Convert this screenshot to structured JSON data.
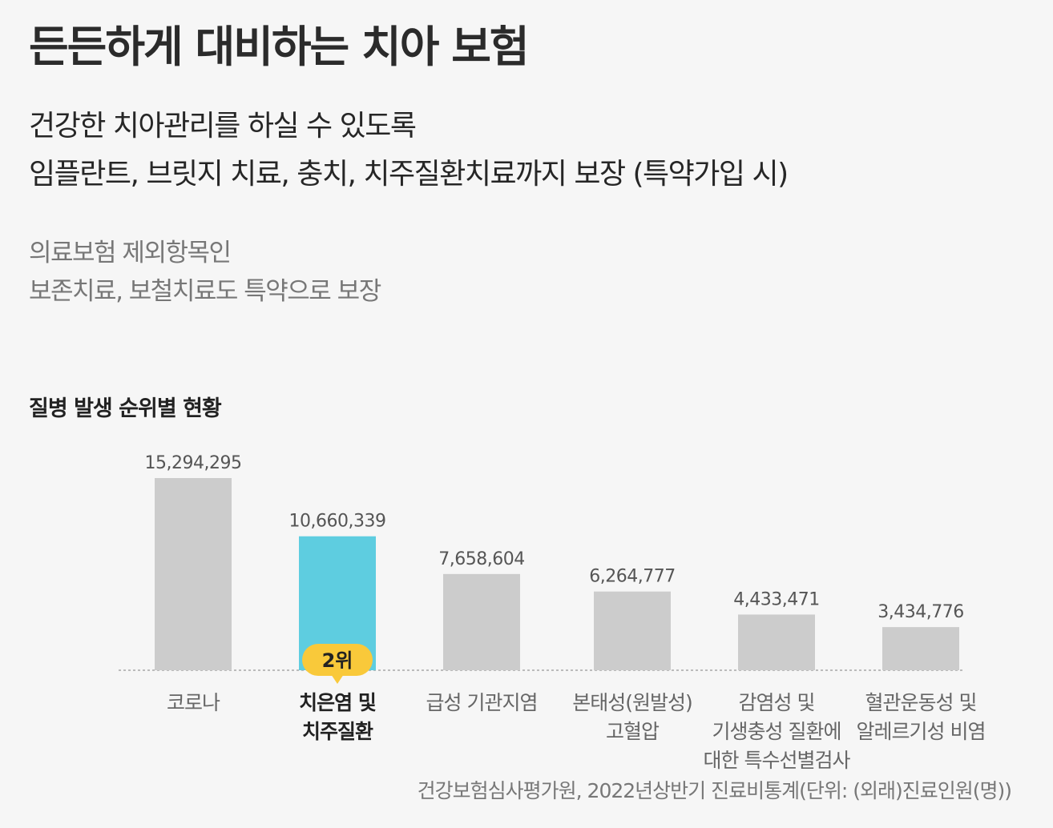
{
  "title": "든든하게 대비하는 치아 보험",
  "headline": {
    "line1": "건강한 치아관리를 하실 수 있도록",
    "line2": "임플란트, 브릿지 치료, 충치, 치주질환치료까지 보장 (특약가입 시)"
  },
  "subtext": {
    "line1": "의료보험 제외항목인",
    "line2": "보존치료, 보철치료도 특약으로 보장"
  },
  "chart_data": {
    "type": "bar",
    "title": "질병 발생 순위별 현황",
    "categories": [
      [
        "코로나"
      ],
      [
        "치은염 및",
        "치주질환"
      ],
      [
        "급성 기관지염"
      ],
      [
        "본태성(원발성)",
        "고혈압"
      ],
      [
        "감염성 및",
        "기생충성 질환에",
        "대한 특수선별검사"
      ],
      [
        "혈관운동성 및",
        "알레르기성 비염"
      ]
    ],
    "values": [
      15294295,
      10660339,
      7658604,
      6264777,
      4433471,
      3434776
    ],
    "value_labels": [
      "15,294,295",
      "10,660,339",
      "7,658,604",
      "6,264,777",
      "4,433,471",
      "3,434,776"
    ],
    "highlight_index": 1,
    "highlight_badge": "2위",
    "ylim": [
      0,
      15294295
    ],
    "grid": false,
    "colors": {
      "bar": "#cccccc",
      "highlight": "#5ecde0",
      "badge": "#f9c93a",
      "baseline": "#bbbbbb"
    }
  },
  "source": "건강보험심사평가원, 2022년상반기 진료비통계(단위: (외래)진료인원(명))"
}
